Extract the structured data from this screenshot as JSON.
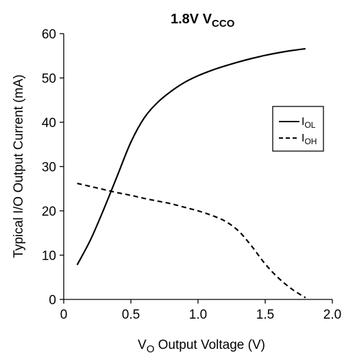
{
  "chart_data": {
    "type": "line",
    "title": {
      "main": "1.8V V",
      "sub": "CCO"
    },
    "xlabel": {
      "pre": "V",
      "sub": "O",
      "post": " Output Voltage (V)"
    },
    "ylabel": "Typical I/O Output Current (mA)",
    "xlim": [
      0,
      2.0
    ],
    "ylim": [
      0,
      60
    ],
    "xticks": [
      "0",
      "0.5",
      "1.0",
      "1.5",
      "2.0"
    ],
    "xtick_values": [
      0,
      0.5,
      1.0,
      1.5,
      2.0
    ],
    "yticks": [
      "0",
      "10",
      "20",
      "30",
      "40",
      "50",
      "60"
    ],
    "ytick_values": [
      0,
      10,
      20,
      30,
      40,
      50,
      60
    ],
    "grid": false,
    "legend_position": "right",
    "series": [
      {
        "name": {
          "pre": "I",
          "sub": "OL"
        },
        "style": "solid",
        "x": [
          0.1,
          0.2,
          0.3,
          0.4,
          0.5,
          0.6,
          0.7,
          0.8,
          0.9,
          1.0,
          1.1,
          1.2,
          1.3,
          1.4,
          1.5,
          1.6,
          1.7,
          1.8
        ],
        "y": [
          7.8,
          13.5,
          20.5,
          28.0,
          35.5,
          41.0,
          44.5,
          47.0,
          49.0,
          50.5,
          51.7,
          52.7,
          53.6,
          54.4,
          55.1,
          55.7,
          56.2,
          56.6
        ]
      },
      {
        "name": {
          "pre": "I",
          "sub": "OH"
        },
        "style": "dashed",
        "x": [
          0.1,
          0.2,
          0.3,
          0.4,
          0.5,
          0.6,
          0.7,
          0.8,
          0.9,
          1.0,
          1.1,
          1.2,
          1.3,
          1.4,
          1.5,
          1.6,
          1.7,
          1.8
        ],
        "y": [
          26.2,
          25.5,
          24.8,
          24.1,
          23.5,
          22.8,
          22.2,
          21.6,
          20.8,
          20.0,
          19.0,
          17.7,
          15.5,
          12.0,
          8.0,
          4.8,
          2.3,
          0.4
        ]
      }
    ]
  },
  "colors": {
    "line": "#000000",
    "background": "#ffffff"
  }
}
